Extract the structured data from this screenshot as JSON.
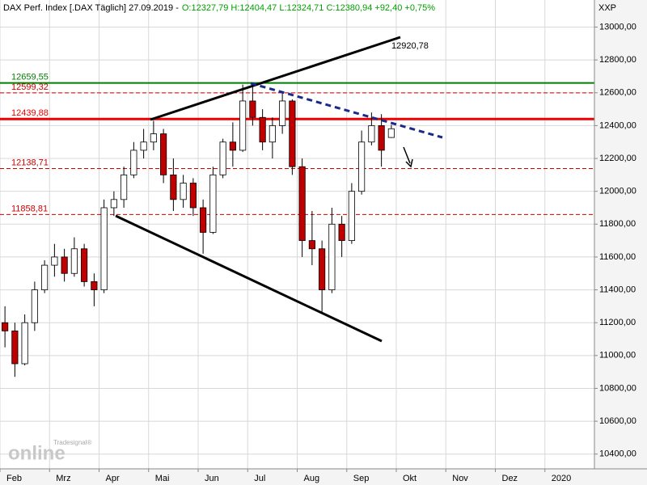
{
  "chart_data": {
    "type": "candlestick",
    "title": "DAX Perf. Index [.DAX  Täglich] 27.09.2019 -",
    "quote": "O:12327,79 H:12404,47 L:12324,71 C:12380,94 +92,40 +0,75%",
    "quote_color": "#00a000",
    "axis_label": "XXP",
    "watermark_small": "Tradesignal®",
    "watermark": "online",
    "annotations": [
      "12920,78"
    ],
    "categories": [
      "Feb",
      null,
      null,
      null,
      null,
      "Mrz",
      null,
      null,
      null,
      null,
      "Apr",
      null,
      null,
      null,
      null,
      "Mai",
      null,
      null,
      null,
      null,
      "Jun",
      null,
      null,
      null,
      null,
      "Jul",
      null,
      null,
      null,
      null,
      "Aug",
      null,
      null,
      null,
      null,
      "Sep",
      null,
      null,
      null,
      null,
      "Okt",
      null,
      null,
      null,
      null,
      "Nov",
      null,
      null,
      null,
      null,
      "Dez",
      null,
      null,
      null,
      null,
      "2020",
      null,
      null,
      null,
      null
    ],
    "open": [
      11200,
      11150,
      10950,
      11200,
      11400,
      11550,
      11600,
      11500,
      11650,
      11450,
      11400,
      11900,
      11950,
      12100,
      12250,
      12300,
      12350,
      12100,
      11950,
      12050,
      11900,
      11750,
      12100,
      12300,
      12250,
      12550,
      12450,
      12300,
      12400,
      12550,
      12150,
      11700,
      11650,
      11400,
      11800,
      11700,
      12000,
      12300,
      12400,
      12327.79,
      null,
      null,
      null,
      null,
      null,
      null,
      null,
      null,
      null,
      null,
      null,
      null,
      null,
      null,
      null,
      null,
      null,
      null,
      null,
      null
    ],
    "high": [
      11300,
      11200,
      11250,
      11450,
      11580,
      11680,
      11650,
      11720,
      11680,
      11500,
      11950,
      12000,
      12150,
      12300,
      12380,
      12430,
      12380,
      12200,
      12100,
      12080,
      11950,
      12150,
      12320,
      12420,
      12650,
      12660,
      12500,
      12450,
      12600,
      12560,
      12200,
      11880,
      11700,
      11900,
      11850,
      12050,
      12370,
      12480,
      12470,
      12404.47,
      null,
      null,
      null,
      null,
      null,
      null,
      null,
      null,
      null,
      null,
      null,
      null,
      null,
      null,
      null,
      null,
      null,
      null,
      null,
      null
    ],
    "low": [
      11050,
      10870,
      10940,
      11150,
      11380,
      11480,
      11450,
      11480,
      11420,
      11300,
      11380,
      11850,
      11900,
      12080,
      12200,
      12250,
      12050,
      11880,
      11900,
      11850,
      11620,
      11740,
      12080,
      12150,
      12240,
      12400,
      12250,
      12200,
      12350,
      12100,
      11600,
      11550,
      11266,
      11380,
      11600,
      11680,
      11980,
      12280,
      12150,
      12324.71,
      null,
      null,
      null,
      null,
      null,
      null,
      null,
      null,
      null,
      null,
      null,
      null,
      null,
      null,
      null,
      null,
      null,
      null,
      null,
      null
    ],
    "close": [
      11150,
      10950,
      11200,
      11400,
      11550,
      11600,
      11500,
      11650,
      11450,
      11400,
      11900,
      11950,
      12100,
      12250,
      12300,
      12350,
      12100,
      11950,
      12050,
      11900,
      11750,
      12100,
      12300,
      12250,
      12550,
      12450,
      12300,
      12400,
      12550,
      12150,
      11700,
      11650,
      11400,
      11800,
      11700,
      12000,
      12300,
      12400,
      12250,
      12380.94,
      null,
      null,
      null,
      null,
      null,
      null,
      null,
      null,
      null,
      null,
      null,
      null,
      null,
      null,
      null,
      null,
      null,
      null,
      null,
      null
    ],
    "up_color": "#ffffff",
    "down_color": "#c00000",
    "levels": [
      {
        "value": 12659.55,
        "label": "12659,55",
        "color": "#008000",
        "style": "solid"
      },
      {
        "value": 12599.32,
        "label": "12599,32",
        "color": "#d00000",
        "style": "dashed"
      },
      {
        "value": 12439.88,
        "label": "12439,88",
        "color": "#ee0000",
        "style": "thick"
      },
      {
        "value": 12138.71,
        "label": "12138,71",
        "color": "#d00000",
        "style": "dashed"
      },
      {
        "value": 11858.81,
        "label": "11858,81",
        "color": "#d00000",
        "style": "dashed"
      }
    ],
    "ylim": [
      10310,
      13165
    ],
    "yticks": [
      {
        "value": 10400,
        "label": "10400,00"
      },
      {
        "value": 10600,
        "label": "10600,00"
      },
      {
        "value": 10800,
        "label": "10800,00"
      },
      {
        "value": 11000,
        "label": "11000,00"
      },
      {
        "value": 11200,
        "label": "11200,00"
      },
      {
        "value": 11400,
        "label": "11400,00"
      },
      {
        "value": 11600,
        "label": "11600,00"
      },
      {
        "value": 11800,
        "label": "11800,00"
      },
      {
        "value": 12000,
        "label": "12000,00"
      },
      {
        "value": 12200,
        "label": "12200,00"
      },
      {
        "value": 12400,
        "label": "12400,00"
      },
      {
        "value": 12600,
        "label": "12600,00"
      },
      {
        "value": 12800,
        "label": "12800,00"
      },
      {
        "value": 13000,
        "label": "13000,00"
      }
    ],
    "grid": true
  }
}
